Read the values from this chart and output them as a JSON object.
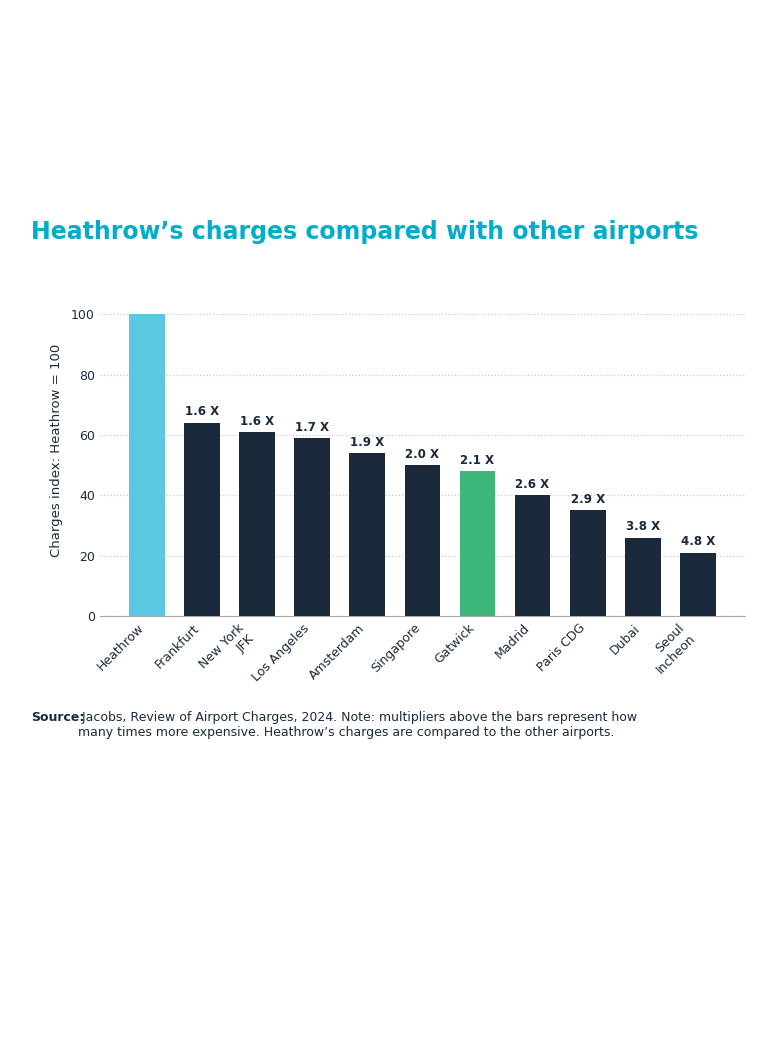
{
  "title": "Heathrow’s charges compared with other airports",
  "title_color": "#00AECC",
  "background_color": "#ffffff",
  "categories": [
    "Heathrow",
    "Frankfurt",
    "New York\nJFK",
    "Los Angeles",
    "Amsterdam",
    "Singapore",
    "Gatwick",
    "Madrid",
    "Paris CDG",
    "Dubai",
    "Seoul\nIncheon"
  ],
  "values": [
    100,
    64,
    61,
    59,
    54,
    50,
    48,
    40,
    35,
    26,
    21
  ],
  "multipliers": [
    "",
    "1.6 X",
    "1.6 X",
    "1.7 X",
    "1.9 X",
    "2.0 X",
    "2.1 X",
    "2.6 X",
    "2.9 X",
    "3.8 X",
    "4.8 X"
  ],
  "bar_colors": [
    "#5BC8E2",
    "#1B2A3B",
    "#1B2A3B",
    "#1B2A3B",
    "#1B2A3B",
    "#1B2A3B",
    "#3DB87A",
    "#1B2A3B",
    "#1B2A3B",
    "#1B2A3B",
    "#1B2A3B"
  ],
  "ylabel": "Charges index: Heathrow = 100",
  "ylim": [
    0,
    110
  ],
  "yticks": [
    0,
    20,
    40,
    60,
    80,
    100
  ],
  "grid_color": "#cccccc",
  "source_bold": "Source:",
  "source_text": " Jacobs, Review of Airport Charges, 2024. Note: multipliers above the bars represent how\nmany times more expensive. Heathrow’s charges are compared to the other airports.",
  "multiplier_fontsize": 8.5,
  "axis_label_fontsize": 9.5,
  "tick_fontsize": 9,
  "title_fontsize": 17,
  "source_fontsize": 9
}
